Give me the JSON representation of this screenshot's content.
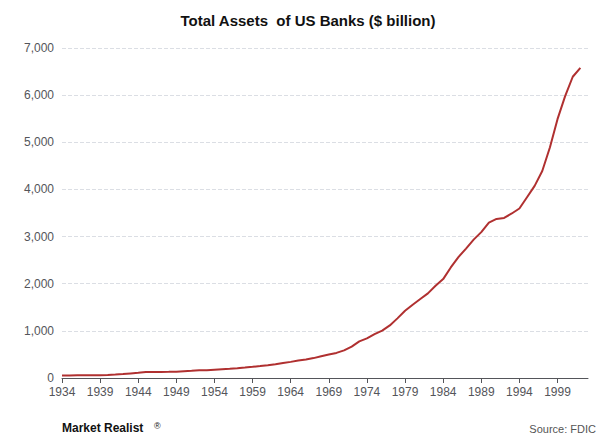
{
  "chart_data": {
    "type": "line",
    "title": "Total Assets  of US Banks ($ billion)",
    "color": "#b03030",
    "x": [
      1934,
      1935,
      1936,
      1937,
      1938,
      1939,
      1940,
      1941,
      1942,
      1943,
      1944,
      1945,
      1946,
      1947,
      1948,
      1949,
      1950,
      1951,
      1952,
      1953,
      1954,
      1955,
      1956,
      1957,
      1958,
      1959,
      1960,
      1961,
      1962,
      1963,
      1964,
      1965,
      1966,
      1967,
      1968,
      1969,
      1970,
      1971,
      1972,
      1973,
      1974,
      1975,
      1976,
      1977,
      1978,
      1979,
      1980,
      1981,
      1982,
      1983,
      1984,
      1985,
      1986,
      1987,
      1988,
      1989,
      1990,
      1991,
      1992,
      1993,
      1994,
      1995,
      1996,
      1997,
      1998,
      1999,
      2000,
      2001,
      2002
    ],
    "values": [
      55,
      53,
      56,
      58,
      58,
      60,
      66,
      73,
      83,
      98,
      112,
      127,
      127,
      128,
      130,
      133,
      143,
      152,
      162,
      167,
      177,
      187,
      197,
      208,
      222,
      237,
      254,
      272,
      292,
      317,
      342,
      372,
      392,
      422,
      462,
      497,
      532,
      587,
      667,
      777,
      840,
      930,
      1005,
      1115,
      1265,
      1425,
      1555,
      1675,
      1795,
      1955,
      2098,
      2345,
      2565,
      2745,
      2935,
      3095,
      3295,
      3375,
      3395,
      3490,
      3595,
      3835,
      4075,
      4390,
      4890,
      5490,
      5980,
      6390,
      6580
    ],
    "xlim": [
      1934,
      2003
    ],
    "xticks": [
      1934,
      1939,
      1944,
      1949,
      1954,
      1959,
      1964,
      1969,
      1974,
      1979,
      1984,
      1989,
      1994,
      1999
    ],
    "ylim": [
      0,
      7000
    ],
    "yticks": [
      0,
      {
        "value": 1000,
        "label": "1,000"
      },
      {
        "value": 2000,
        "label": "2,000"
      },
      {
        "value": 3000,
        "label": "3,000"
      },
      {
        "value": 4000,
        "label": "4,000"
      },
      {
        "value": 5000,
        "label": "5,000"
      },
      {
        "value": 6000,
        "label": "6,000"
      },
      {
        "value": 7000,
        "label": "7,000"
      }
    ],
    "grid": true,
    "annotations": [
      "Market Realist",
      "®",
      "Source: FDIC"
    ]
  }
}
